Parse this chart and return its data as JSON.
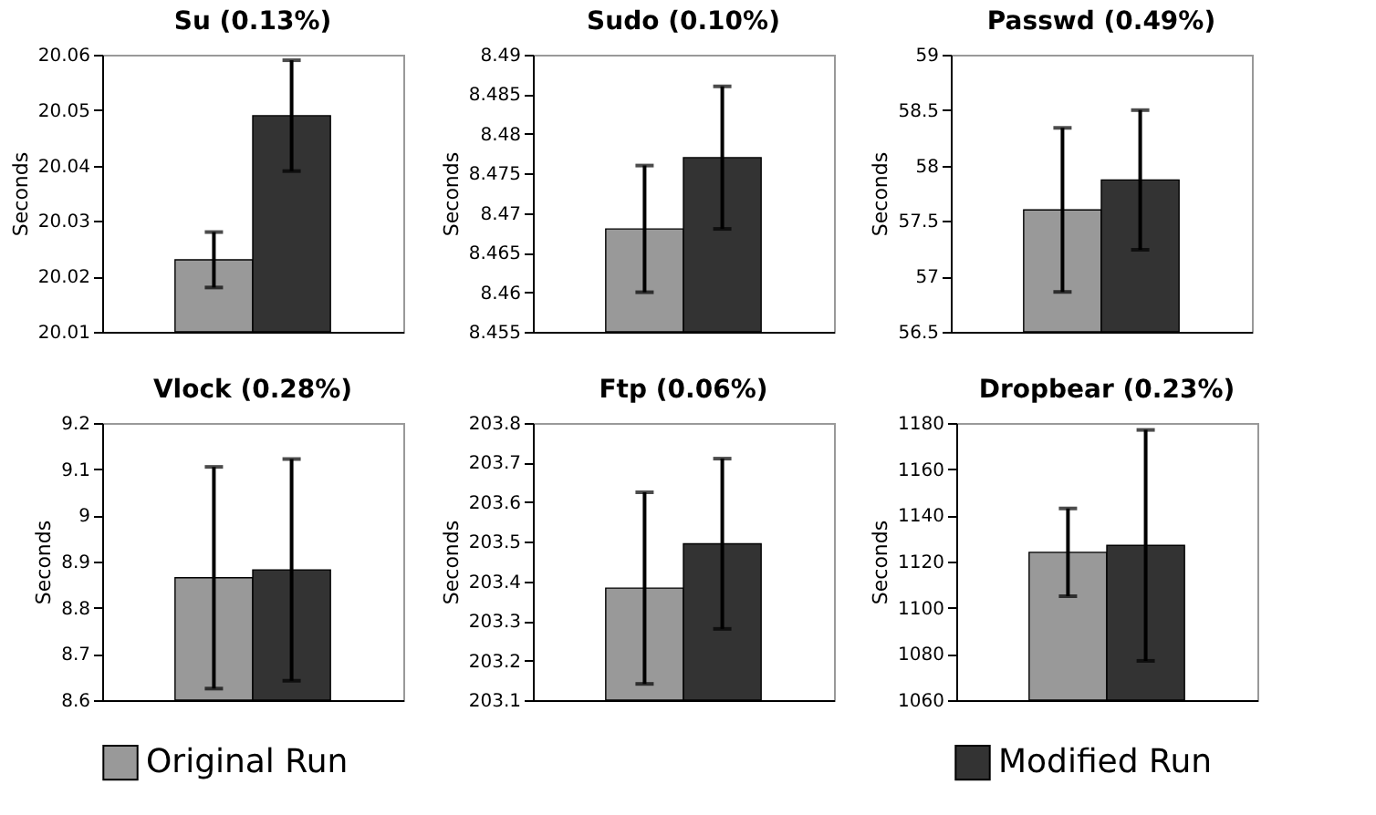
{
  "chart_data": [
    {
      "type": "bar",
      "title": "Su (0.13%)",
      "ylabel": "Seconds",
      "categories": [
        null
      ],
      "ylim": [
        20.01,
        20.06
      ],
      "yticks": [
        20.01,
        20.02,
        20.03,
        20.04,
        20.05,
        20.06
      ],
      "legend": "bottom",
      "tick_labels": "y",
      "series": [
        {
          "name": "Original Run",
          "color": "#999999",
          "values": [
            20.023
          ],
          "errors": [
            0.005
          ]
        },
        {
          "name": "Modified Run",
          "color": "#333333",
          "values": [
            20.049
          ],
          "errors": [
            0.01
          ]
        }
      ]
    },
    {
      "type": "bar",
      "title": "Sudo (0.10%)",
      "ylabel": "Seconds",
      "categories": [
        null
      ],
      "ylim": [
        8.455,
        8.49
      ],
      "yticks": [
        8.455,
        8.46,
        8.465,
        8.47,
        8.475,
        8.48,
        8.485,
        8.49
      ],
      "legend": "bottom",
      "tick_labels": "y",
      "series": [
        {
          "name": "Original Run",
          "color": "#999999",
          "values": [
            8.468
          ],
          "errors": [
            0.008
          ]
        },
        {
          "name": "Modified Run",
          "color": "#333333",
          "values": [
            8.477
          ],
          "errors": [
            0.009
          ]
        }
      ]
    },
    {
      "type": "bar",
      "title": "Passwd (0.49%)",
      "ylabel": "Seconds",
      "categories": [
        null
      ],
      "ylim": [
        56.5,
        59
      ],
      "yticks": [
        56.5,
        57,
        57.5,
        58,
        58.5,
        59
      ],
      "legend": "bottom",
      "tick_labels": "y",
      "series": [
        {
          "name": "Original Run",
          "color": "#999999",
          "values": [
            57.6
          ],
          "errors": [
            0.74
          ]
        },
        {
          "name": "Modified Run",
          "color": "#333333",
          "values": [
            57.87
          ],
          "errors": [
            0.63
          ]
        }
      ]
    },
    {
      "type": "bar",
      "title": "Vlock (0.28%)",
      "ylabel": "Seconds",
      "categories": [
        null
      ],
      "ylim": [
        8.6,
        9.2
      ],
      "yticks": [
        8.6,
        8.7,
        8.8,
        8.9,
        9,
        9.1,
        9.2
      ],
      "legend": "bottom",
      "tick_labels": "y",
      "series": [
        {
          "name": "Original Run",
          "color": "#999999",
          "values": [
            8.865
          ],
          "errors": [
            0.24
          ]
        },
        {
          "name": "Modified Run",
          "color": "#333333",
          "values": [
            8.882
          ],
          "errors": [
            0.24
          ]
        }
      ]
    },
    {
      "type": "bar",
      "title": "Ftp (0.06%)",
      "ylabel": "Seconds",
      "categories": [
        null
      ],
      "ylim": [
        203.1,
        203.8
      ],
      "yticks": [
        203.1,
        203.2,
        203.3,
        203.4,
        203.5,
        203.6,
        203.7,
        203.8
      ],
      "legend": "bottom",
      "tick_labels": "y",
      "series": [
        {
          "name": "Original Run",
          "color": "#999999",
          "values": [
            203.383
          ],
          "errors": [
            0.242
          ]
        },
        {
          "name": "Modified Run",
          "color": "#333333",
          "values": [
            203.495
          ],
          "errors": [
            0.215
          ]
        }
      ]
    },
    {
      "type": "bar",
      "title": "Dropbear (0.23%)",
      "ylabel": "Seconds",
      "categories": [
        null
      ],
      "ylim": [
        1060,
        1180
      ],
      "yticks": [
        1060,
        1080,
        1100,
        1120,
        1140,
        1160,
        1180
      ],
      "legend": "bottom",
      "tick_labels": "y",
      "series": [
        {
          "name": "Original Run",
          "color": "#999999",
          "values": [
            1124
          ],
          "errors": [
            19
          ]
        },
        {
          "name": "Modified Run",
          "color": "#333333",
          "values": [
            1127
          ],
          "errors": [
            50
          ]
        }
      ]
    }
  ]
}
